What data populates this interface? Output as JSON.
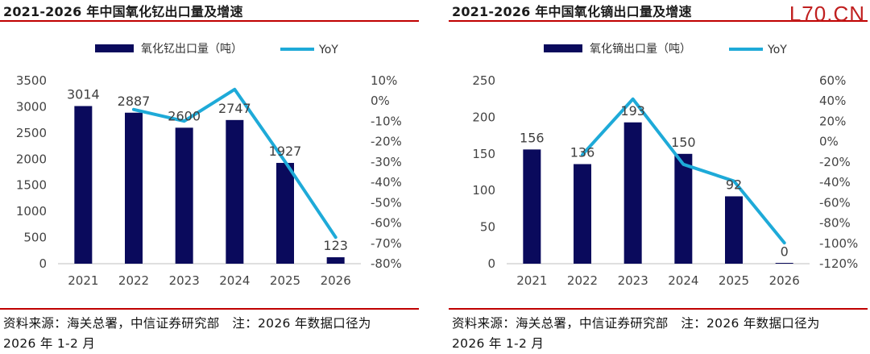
{
  "watermark": "L70.CN",
  "charts": [
    {
      "title": "2021-2026 年中国氧化钇出口量及增速",
      "source_line1": "资料来源：海关总署，中信证券研究部　注：2026 年数据口径为",
      "source_line2": "2026 年 1-2 月",
      "legend": {
        "bar": "氧化钇出口量（吨）",
        "line": "YoY"
      },
      "bar_color": "#0a0a5c",
      "line_color": "#1eaad8",
      "y_left": {
        "min": 0,
        "max": 3500,
        "ticks": [
          "0",
          "500",
          "1000",
          "1500",
          "2000",
          "2500",
          "3000",
          "3500"
        ]
      },
      "y_right": {
        "min": -80,
        "max": 10,
        "ticks": [
          "-80%",
          "-70%",
          "-60%",
          "-50%",
          "-40%",
          "-30%",
          "-20%",
          "-10%",
          "0%",
          "10%"
        ]
      },
      "chart_data": {
        "type": "bar",
        "categories": [
          "2021",
          "2022",
          "2023",
          "2024",
          "2025",
          "2026"
        ],
        "series": [
          {
            "name": "氧化钇出口量（吨）",
            "type": "bar",
            "axis": "left",
            "values": [
              3014,
              2887,
              2600,
              2747,
              1927,
              123
            ],
            "labels": [
              "3014",
              "2887",
              "2600",
              "2747",
              "1927",
              "123"
            ]
          },
          {
            "name": "YoY",
            "type": "line",
            "axis": "right",
            "values": [
              null,
              -4.2,
              -9.9,
              5.7,
              -29.9,
              -67
            ]
          }
        ]
      }
    },
    {
      "title": "2021-2026 年中国氧化镝出口量及增速",
      "source_line1": "资料来源：海关总署，中信证券研究部　注：2026 年数据口径为",
      "source_line2": "2026 年 1-2 月",
      "legend": {
        "bar": "氧化镝出口量（吨）",
        "line": "YoY"
      },
      "bar_color": "#0a0a5c",
      "line_color": "#1eaad8",
      "y_left": {
        "min": 0,
        "max": 250,
        "ticks": [
          "0",
          "50",
          "100",
          "150",
          "200",
          "250"
        ]
      },
      "y_right": {
        "min": -120,
        "max": 60,
        "ticks": [
          "-120%",
          "-100%",
          "-80%",
          "-60%",
          "-40%",
          "-20%",
          "0%",
          "20%",
          "40%",
          "60%"
        ]
      },
      "chart_data": {
        "type": "bar",
        "categories": [
          "2021",
          "2022",
          "2023",
          "2024",
          "2025",
          "2026"
        ],
        "series": [
          {
            "name": "氧化镝出口量（吨）",
            "type": "bar",
            "axis": "left",
            "values": [
              156,
              136,
              193,
              150,
              92,
              0.5
            ],
            "labels": [
              "156",
              "136",
              "193",
              "150",
              "92",
              "0"
            ]
          },
          {
            "name": "YoY",
            "type": "line",
            "axis": "right",
            "values": [
              null,
              -12.8,
              41.9,
              -22.3,
              -38.7,
              -99.5
            ]
          }
        ]
      }
    }
  ]
}
